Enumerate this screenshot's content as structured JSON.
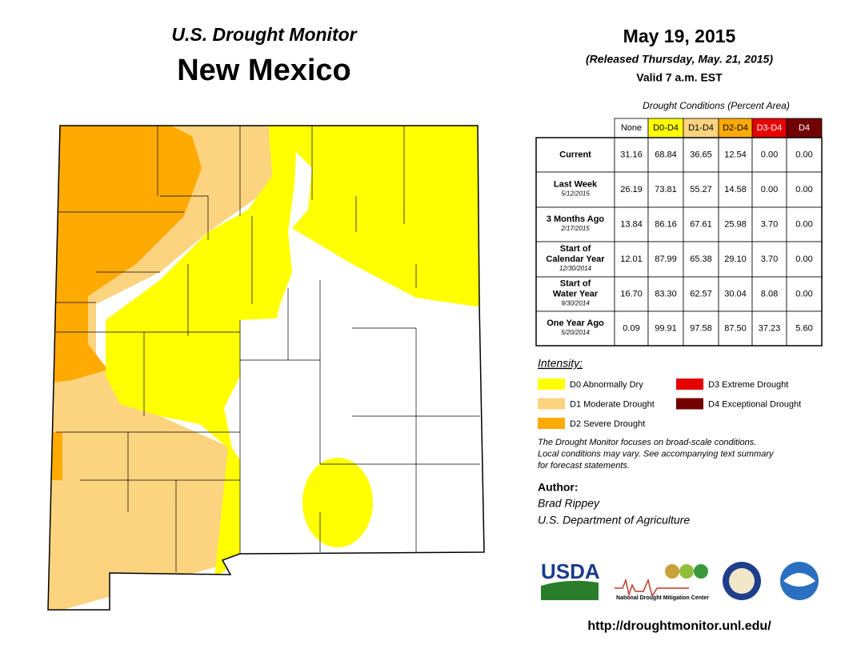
{
  "header": {
    "title": "U.S. Drought Monitor",
    "state": "New Mexico",
    "date": "May 19, 2015",
    "released": "(Released Thursday, May. 21, 2015)",
    "valid": "Valid 7 a.m. EST"
  },
  "table": {
    "caption": "Drought Conditions (Percent Area)",
    "columns": [
      "None",
      "D0-D4",
      "D1-D4",
      "D2-D4",
      "D3-D4",
      "D4"
    ],
    "column_colors": [
      "#FFFFFF",
      "#FFFF00",
      "#FCD37F",
      "#FFAA00",
      "#E60000",
      "#730000"
    ],
    "rows": [
      {
        "label": [
          "Current"
        ],
        "values": [
          "31.16",
          "68.84",
          "36.65",
          "12.54",
          "0.00",
          "0.00"
        ]
      },
      {
        "label": [
          "Last Week"
        ],
        "date": "5/12/2015",
        "values": [
          "26.19",
          "73.81",
          "55.27",
          "14.58",
          "0.00",
          "0.00"
        ]
      },
      {
        "label": [
          "3 Months Ago"
        ],
        "date": "2/17/2015",
        "values": [
          "13.84",
          "86.16",
          "67.61",
          "25.98",
          "3.70",
          "0.00"
        ]
      },
      {
        "label": [
          "Start of",
          "Calendar Year"
        ],
        "date": "12/30/2014",
        "values": [
          "12.01",
          "87.99",
          "65.38",
          "29.10",
          "3.70",
          "0.00"
        ]
      },
      {
        "label": [
          "Start of",
          "Water Year"
        ],
        "date": "9/30/2014",
        "values": [
          "16.70",
          "83.30",
          "62.57",
          "30.04",
          "8.08",
          "0.00"
        ]
      },
      {
        "label": [
          "One Year Ago"
        ],
        "date": "5/20/2014",
        "values": [
          "0.09",
          "99.91",
          "97.58",
          "87.50",
          "37.23",
          "5.60"
        ]
      }
    ]
  },
  "legend": {
    "title": "Intensity:",
    "items": [
      {
        "label": "D0 Abnormally Dry",
        "color": "#FFFF00"
      },
      {
        "label": "D1 Moderate Drought",
        "color": "#FCD37F"
      },
      {
        "label": "D2 Severe Drought",
        "color": "#FFAA00"
      },
      {
        "label": "D3 Extreme Drought",
        "color": "#E60000"
      },
      {
        "label": "D4 Exceptional Drought",
        "color": "#730000"
      }
    ]
  },
  "note": [
    "The Drought Monitor focuses on broad-scale conditions.",
    "Local conditions may vary. See accompanying text summary",
    "for forecast statements."
  ],
  "author": {
    "label": "Author:",
    "name": "Brad Rippey",
    "org": "U.S. Department of Agriculture"
  },
  "footer": {
    "usda": "USDA",
    "ndmc": "National Drought Mitigation Center",
    "url": "http://droughtmonitor.unl.edu/"
  }
}
